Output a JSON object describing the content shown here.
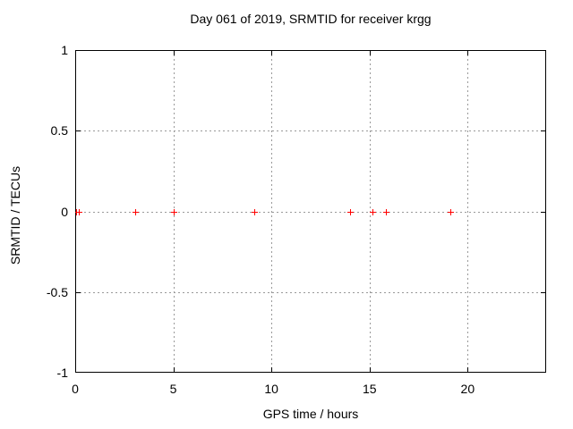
{
  "chart_data": {
    "type": "scatter",
    "title": "Day 061 of 2019, SRMTID for receiver krgg",
    "xlabel": "GPS time / hours",
    "ylabel": "SRMTID / TECUs",
    "xlim": [
      0,
      24
    ],
    "ylim": [
      -1,
      1
    ],
    "grid": true,
    "legend": "none",
    "xticks": [
      {
        "v": 0,
        "label": "0"
      },
      {
        "v": 5,
        "label": "5"
      },
      {
        "v": 10,
        "label": "10"
      },
      {
        "v": 15,
        "label": "15"
      },
      {
        "v": 20,
        "label": "20"
      }
    ],
    "yticks": [
      {
        "v": 1,
        "label": "1"
      },
      {
        "v": 0.5,
        "label": "0.5"
      },
      {
        "v": 0,
        "label": "0"
      },
      {
        "v": -0.5,
        "label": "-0.5"
      },
      {
        "v": -1,
        "label": "-1"
      }
    ],
    "marker": "plus",
    "marker_color": "#ff0000",
    "grid_color": "#999999",
    "border_color": "#000000",
    "points": [
      {
        "x": 0.03,
        "y": 0
      },
      {
        "x": 0.18,
        "y": 0
      },
      {
        "x": 3.06,
        "y": 0
      },
      {
        "x": 5.02,
        "y": 0
      },
      {
        "x": 9.12,
        "y": 0
      },
      {
        "x": 14.02,
        "y": 0
      },
      {
        "x": 15.17,
        "y": 0
      },
      {
        "x": 15.85,
        "y": 0
      },
      {
        "x": 19.12,
        "y": 0
      }
    ]
  }
}
